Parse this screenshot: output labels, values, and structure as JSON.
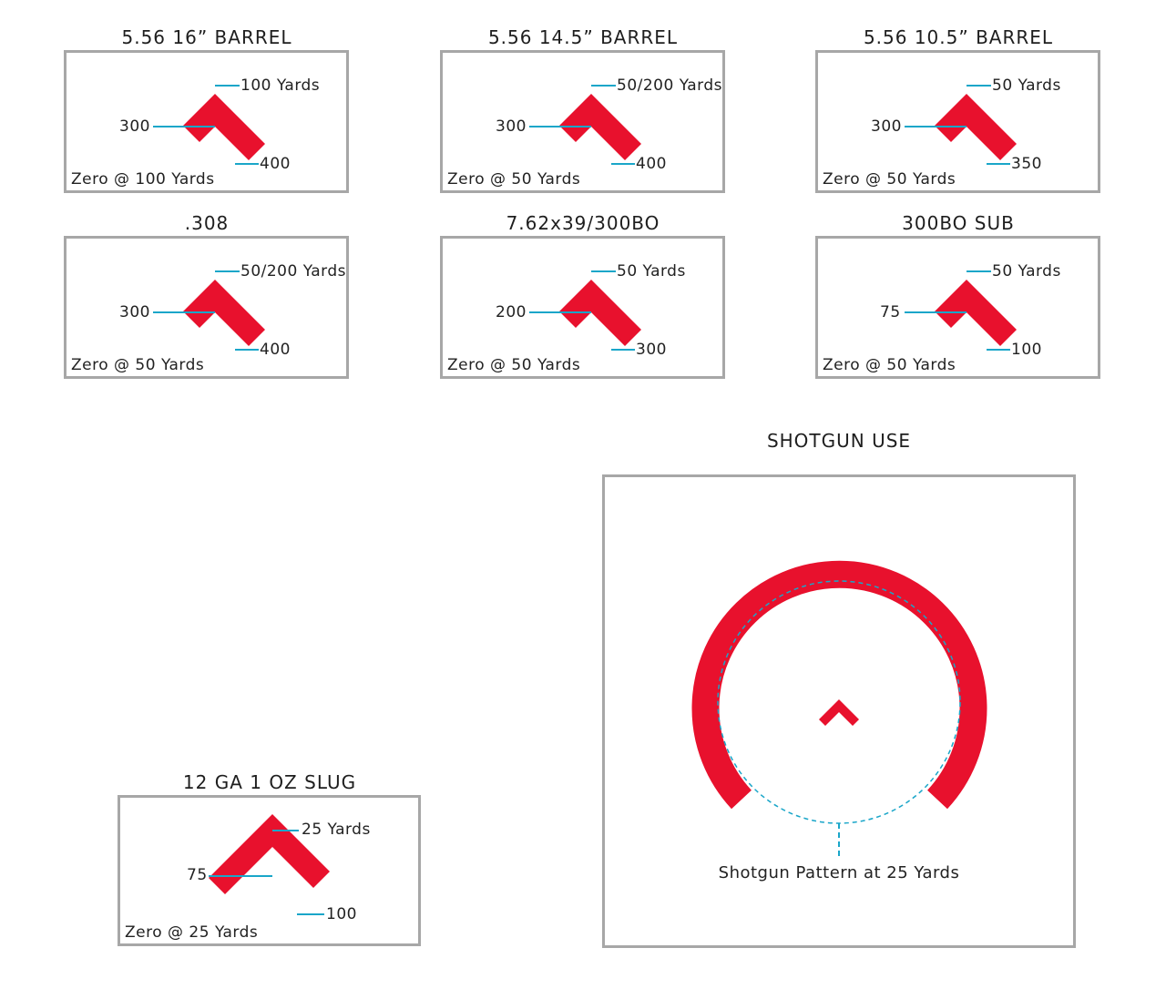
{
  "panels": [
    {
      "title": "5.56 16” BARREL",
      "top_label": "100 Yards",
      "mid_label": "300",
      "bottom_label": "400",
      "zero_label": "Zero @ 100 Yards"
    },
    {
      "title": "5.56 14.5” BARREL",
      "top_label": "50/200 Yards",
      "mid_label": "300",
      "bottom_label": "400",
      "zero_label": "Zero @ 50 Yards"
    },
    {
      "title": "5.56 10.5” BARREL",
      "top_label": "50 Yards",
      "mid_label": "300",
      "bottom_label": "350",
      "zero_label": "Zero @ 50 Yards"
    },
    {
      "title": ".308",
      "top_label": "50/200 Yards",
      "mid_label": "300",
      "bottom_label": "400",
      "zero_label": "Zero @ 50 Yards"
    },
    {
      "title": "7.62x39/300BO",
      "top_label": "50 Yards",
      "mid_label": "200",
      "bottom_label": "300",
      "zero_label": "Zero @ 50 Yards"
    },
    {
      "title": "300BO SUB",
      "top_label": "50 Yards",
      "mid_label": "75",
      "bottom_label": "100",
      "zero_label": "Zero @ 50 Yards"
    },
    {
      "title": "12 GA 1 OZ SLUG",
      "top_label": "25 Yards",
      "mid_label": "75",
      "bottom_label": "100",
      "zero_label": "Zero @ 25 Yards"
    }
  ],
  "shotgun": {
    "title": "SHOTGUN USE",
    "pattern_label": "Shotgun Pattern at 25 Yards"
  },
  "colors": {
    "reticle_red": "#e8112d",
    "leader_cyan": "#1aa6c9",
    "box_border": "#a7a7a7"
  }
}
